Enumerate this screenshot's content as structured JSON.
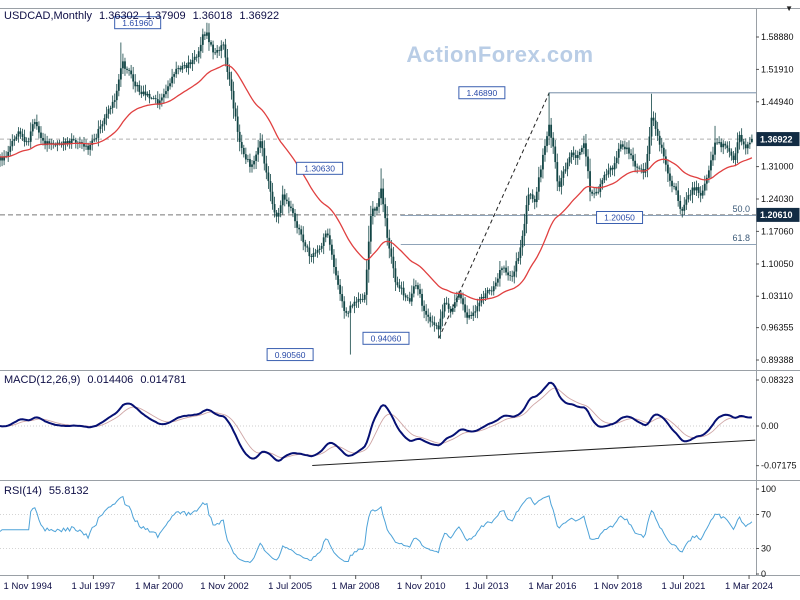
{
  "header": {
    "symbol_period": "USDCAD,Monthly",
    "open": "1.36302",
    "high": "1.37909",
    "low": "1.36018",
    "close": "1.36922"
  },
  "watermark": "ActionForex.com",
  "icons": {
    "dropdown": "▼"
  },
  "price_axis": {
    "ticks": [
      {
        "price": 1.5888,
        "label": "1.58880"
      },
      {
        "price": 1.5191,
        "label": "1.51910"
      },
      {
        "price": 1.4494,
        "label": "1.44940"
      },
      {
        "price": 1.31,
        "label": "1.31000"
      },
      {
        "price": 1.2403,
        "label": "1.24030"
      },
      {
        "price": 1.1706,
        "label": "1.17060"
      },
      {
        "price": 1.1005,
        "label": "1.10050"
      },
      {
        "price": 1.0311,
        "label": "1.03110"
      },
      {
        "price": 0.96355,
        "label": "0.96355"
      },
      {
        "price": 0.89388,
        "label": "0.89388"
      }
    ],
    "current_tag": {
      "price": 1.36922,
      "label": "1.36922"
    },
    "level_tag": {
      "price": 1.2061,
      "label": "1.20610"
    }
  },
  "x_axis": {
    "labels": [
      {
        "t": 1994.833,
        "label": "1 Nov 1994"
      },
      {
        "t": 1997.5,
        "label": "1 Jul 1997"
      },
      {
        "t": 2000.167,
        "label": "1 Mar 2000"
      },
      {
        "t": 2002.833,
        "label": "1 Nov 2002"
      },
      {
        "t": 2005.5,
        "label": "1 Jul 2005"
      },
      {
        "t": 2008.167,
        "label": "1 Mar 2008"
      },
      {
        "t": 2010.833,
        "label": "1 Nov 2010"
      },
      {
        "t": 2013.5,
        "label": "1 Jul 2013"
      },
      {
        "t": 2016.167,
        "label": "1 Mar 2016"
      },
      {
        "t": 2018.833,
        "label": "1 Nov 2018"
      },
      {
        "t": 2021.5,
        "label": "1 Jul 2021"
      },
      {
        "t": 2024.167,
        "label": "1 Mar 2024"
      }
    ]
  },
  "panels": {
    "macd": {
      "label": "MACD(12,26,9)",
      "value_macd": "0.014406",
      "value_signal": "0.014781",
      "ticks": [
        {
          "v": 0.08323,
          "label": "0.08323"
        },
        {
          "v": 0,
          "label": "0.00"
        },
        {
          "v": -0.07175,
          "label": "-0.07175"
        }
      ]
    },
    "rsi": {
      "label": "RSI(14)",
      "value": "55.8132",
      "ticks": [
        {
          "v": 100,
          "label": "100"
        },
        {
          "v": 70,
          "label": "70"
        },
        {
          "v": 30,
          "label": "30"
        },
        {
          "v": 0,
          "label": "0"
        }
      ]
    }
  },
  "annotations": {
    "price_labels": [
      {
        "label": "1.61960",
        "t": 1999.3,
        "price": 1.6196
      },
      {
        "label": "1.46890",
        "t": 2013.3,
        "price": 1.4689
      },
      {
        "label": "1.30630",
        "t": 2006.7,
        "price": 1.3063
      },
      {
        "label": "1.20050",
        "t": 2018.9,
        "price": 1.2005
      },
      {
        "label": "0.94060",
        "t": 2009.4,
        "price": 0.9406
      },
      {
        "label": "0.90560",
        "t": 2005.5,
        "price": 0.9056
      }
    ],
    "resistance_line": {
      "price": 1.4689,
      "from_t": 2016.04
    },
    "fib_levels": [
      {
        "label": "50.0",
        "price": 1.2048,
        "from_t": 2010.0
      },
      {
        "label": "61.8",
        "price": 1.1424,
        "from_t": 2010.0
      }
    ],
    "dashed_levels": [
      {
        "price": 1.36922
      },
      {
        "price": 1.2061
      }
    ],
    "trendline_price": {
      "t1": 2011.55,
      "p1": 0.9406,
      "t2": 2016.04,
      "p2": 1.4689
    },
    "trendline_macd": {
      "t1": 2006.4,
      "v1": -0.0715,
      "t2": 2024.42,
      "v2": -0.0255
    }
  },
  "chart_data": {
    "type": "candlestick",
    "title": "USDCAD Monthly with MACD(12,26,9) and RSI(14)",
    "x_domain": [
      1993.7,
      2024.45
    ],
    "price_range": [
      0.8724,
      1.6512
    ],
    "macd_range": [
      -0.0977,
      0.0995
    ],
    "rsi_range": [
      0,
      100
    ],
    "legend_position": "none",
    "grid": "off",
    "last_candle": {
      "open": 1.36302,
      "high": 1.37909,
      "low": 1.36018,
      "close": 1.36922
    },
    "indicators": {
      "ma_period": 40,
      "macd_params": [
        12,
        26,
        9
      ],
      "rsi_period": 14,
      "macd_last": 0.014406,
      "macd_signal_last": 0.014781,
      "rsi_last": 55.8132
    },
    "price_anchors": [
      [
        1993.7,
        1.325
      ],
      [
        1994.0,
        1.34
      ],
      [
        1994.4,
        1.383
      ],
      [
        1994.83,
        1.358
      ],
      [
        1995.1,
        1.41
      ],
      [
        1995.5,
        1.362
      ],
      [
        1995.9,
        1.353
      ],
      [
        1996.4,
        1.365
      ],
      [
        1996.9,
        1.36
      ],
      [
        1997.3,
        1.35
      ],
      [
        1997.7,
        1.385
      ],
      [
        1998.1,
        1.428
      ],
      [
        1998.4,
        1.462
      ],
      [
        1998.65,
        1.532
      ],
      [
        1998.9,
        1.522
      ],
      [
        1999.3,
        1.478
      ],
      [
        1999.7,
        1.463
      ],
      [
        2000.1,
        1.448
      ],
      [
        2000.5,
        1.477
      ],
      [
        2000.9,
        1.518
      ],
      [
        2001.3,
        1.528
      ],
      [
        2001.7,
        1.552
      ],
      [
        2001.95,
        1.59
      ],
      [
        2002.08,
        1.598
      ],
      [
        2002.4,
        1.558
      ],
      [
        2002.8,
        1.568
      ],
      [
        2003.1,
        1.472
      ],
      [
        2003.5,
        1.348
      ],
      [
        2003.9,
        1.31
      ],
      [
        2004.3,
        1.362
      ],
      [
        2004.7,
        1.252
      ],
      [
        2004.95,
        1.196
      ],
      [
        2005.2,
        1.244
      ],
      [
        2005.55,
        1.224
      ],
      [
        2005.9,
        1.164
      ],
      [
        2006.3,
        1.12
      ],
      [
        2006.7,
        1.128
      ],
      [
        2007.0,
        1.172
      ],
      [
        2007.4,
        1.062
      ],
      [
        2007.75,
        0.996
      ],
      [
        2007.92,
        1.002
      ],
      [
        2008.2,
        1.025
      ],
      [
        2008.5,
        1.018
      ],
      [
        2008.8,
        1.212
      ],
      [
        2009.0,
        1.224
      ],
      [
        2009.2,
        1.258
      ],
      [
        2009.45,
        1.162
      ],
      [
        2009.75,
        1.07
      ],
      [
        2010.0,
        1.05
      ],
      [
        2010.35,
        1.016
      ],
      [
        2010.6,
        1.062
      ],
      [
        2010.9,
        1.01
      ],
      [
        2011.2,
        0.976
      ],
      [
        2011.55,
        0.956
      ],
      [
        2011.75,
        1.018
      ],
      [
        2012.0,
        1.0
      ],
      [
        2012.4,
        1.034
      ],
      [
        2012.7,
        0.984
      ],
      [
        2013.0,
        1.0
      ],
      [
        2013.4,
        1.034
      ],
      [
        2013.8,
        1.05
      ],
      [
        2014.1,
        1.094
      ],
      [
        2014.5,
        1.068
      ],
      [
        2014.9,
        1.14
      ],
      [
        2015.2,
        1.254
      ],
      [
        2015.45,
        1.236
      ],
      [
        2015.75,
        1.32
      ],
      [
        2016.04,
        1.398
      ],
      [
        2016.2,
        1.352
      ],
      [
        2016.4,
        1.262
      ],
      [
        2016.7,
        1.31
      ],
      [
        2016.95,
        1.342
      ],
      [
        2017.2,
        1.33
      ],
      [
        2017.45,
        1.364
      ],
      [
        2017.73,
        1.248
      ],
      [
        2018.0,
        1.256
      ],
      [
        2018.3,
        1.29
      ],
      [
        2018.6,
        1.306
      ],
      [
        2018.95,
        1.362
      ],
      [
        2019.3,
        1.338
      ],
      [
        2019.6,
        1.31
      ],
      [
        2019.95,
        1.3
      ],
      [
        2020.2,
        1.418
      ],
      [
        2020.45,
        1.378
      ],
      [
        2020.7,
        1.332
      ],
      [
        2020.95,
        1.274
      ],
      [
        2021.2,
        1.26
      ],
      [
        2021.42,
        1.212
      ],
      [
        2021.7,
        1.25
      ],
      [
        2021.95,
        1.264
      ],
      [
        2022.2,
        1.252
      ],
      [
        2022.5,
        1.288
      ],
      [
        2022.78,
        1.362
      ],
      [
        2023.0,
        1.356
      ],
      [
        2023.3,
        1.352
      ],
      [
        2023.55,
        1.322
      ],
      [
        2023.8,
        1.382
      ],
      [
        2024.0,
        1.346
      ],
      [
        2024.17,
        1.356
      ],
      [
        2024.29,
        1.369
      ]
    ],
    "extremes": [
      [
        1998.62,
        1.577,
        "h"
      ],
      [
        2002.08,
        1.6196,
        "h"
      ],
      [
        2007.92,
        0.9056,
        "l"
      ],
      [
        2009.2,
        1.3063,
        "h"
      ],
      [
        2011.55,
        0.9406,
        "l"
      ],
      [
        2016.04,
        1.4689,
        "h"
      ],
      [
        2020.2,
        1.4668,
        "h"
      ],
      [
        2021.42,
        1.2005,
        "l"
      ],
      [
        2022.79,
        1.3977,
        "h"
      ]
    ]
  },
  "colors": {
    "background": "#ffffff",
    "panel_border": "#9aa0a6",
    "candle": "#124545",
    "ma_line": "#e04040",
    "macd_line": "#061073",
    "macd_signal": "#cfa6a6",
    "rsi_line": "#4ea3d8",
    "watermark": "#b9cde6",
    "annotation_border": "#3a5fb0",
    "annotation_text": "#2a4ba8",
    "tag_bg": "#122c44",
    "tag_text": "#ffffff",
    "axis_text": "#111111",
    "header_text": "#0e0e46",
    "fib_line": "#8fa3b8",
    "fib_text": "#3c5a78",
    "dashed_current": "#b0b0b0",
    "dashed_level": "#777777",
    "trendline": "#222222",
    "zero_dotted": "#cccccc",
    "rsi_levels": "#d4d4d4",
    "tick_mark": "#555555"
  }
}
